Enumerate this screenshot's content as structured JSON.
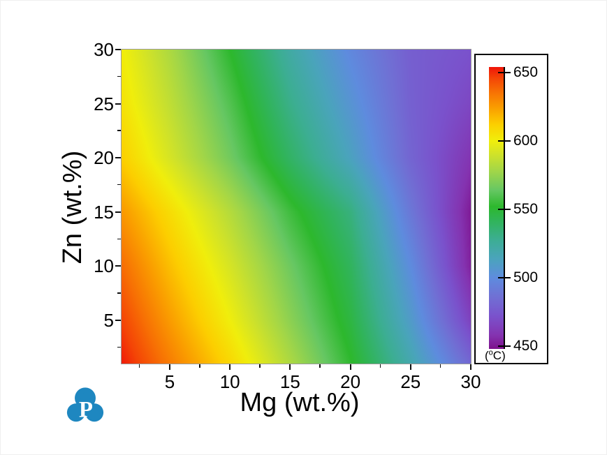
{
  "figure": {
    "background": "#ffffff",
    "watermark": {
      "letter": "P",
      "color": "#1e87c0"
    }
  },
  "chart_data": {
    "type": "heatmap",
    "title": "",
    "xlabel": "Mg (wt.%)",
    "ylabel": "Zn (wt.%)",
    "x_range": [
      1,
      30
    ],
    "y_range": [
      1,
      30
    ],
    "grid_on": false,
    "x_major_ticks": [
      "5",
      "10",
      "15",
      "20",
      "25",
      "30"
    ],
    "x_minor_ticks": [
      2.5,
      7.5,
      12.5,
      17.5,
      22.5,
      27.5
    ],
    "y_major_ticks": [
      "5",
      "10",
      "15",
      "20",
      "25",
      "30"
    ],
    "y_minor_ticks": [
      2.5,
      7.5,
      12.5,
      17.5,
      22.5,
      27.5
    ],
    "mg_values": [
      1,
      5,
      10,
      15,
      20,
      25,
      30
    ],
    "zn_values": [
      1,
      5,
      10,
      15,
      20,
      25,
      30
    ],
    "temperature_grid_by_zn_row": [
      [
        653,
        633,
        609,
        581,
        553,
        519,
        482
      ],
      [
        646,
        625,
        600,
        573,
        547,
        509,
        465
      ],
      [
        637,
        616,
        592,
        566,
        541,
        500,
        453
      ],
      [
        626,
        607,
        583,
        556,
        533,
        490,
        451
      ],
      [
        612,
        592,
        567,
        539,
        513,
        481,
        459
      ],
      [
        605,
        586,
        560,
        530,
        505,
        479,
        467
      ],
      [
        601,
        581,
        552,
        522,
        498,
        478,
        472
      ]
    ],
    "colorbar": {
      "position": "right",
      "min": 446,
      "max": 654,
      "tick_values": [
        650,
        600,
        550,
        500,
        450
      ],
      "tick_labels": [
        "650",
        "600",
        "550",
        "500",
        "450"
      ],
      "unit_open": "(",
      "unit_sup": "o",
      "unit_rest": "C)",
      "color_stops": [
        [
          446,
          "#7c0a84"
        ],
        [
          458,
          "#8433b0"
        ],
        [
          472,
          "#7a52cc"
        ],
        [
          486,
          "#7070d4"
        ],
        [
          500,
          "#5e8cde"
        ],
        [
          514,
          "#4aa4bc"
        ],
        [
          528,
          "#3cae92"
        ],
        [
          542,
          "#30b458"
        ],
        [
          552,
          "#2db82d"
        ],
        [
          564,
          "#66c763"
        ],
        [
          578,
          "#a2d648"
        ],
        [
          590,
          "#cfe22a"
        ],
        [
          600,
          "#f0ee0c"
        ],
        [
          612,
          "#fccf00"
        ],
        [
          624,
          "#fa9f00"
        ],
        [
          636,
          "#f77004"
        ],
        [
          646,
          "#f44406"
        ],
        [
          654,
          "#ef1509"
        ]
      ]
    }
  }
}
